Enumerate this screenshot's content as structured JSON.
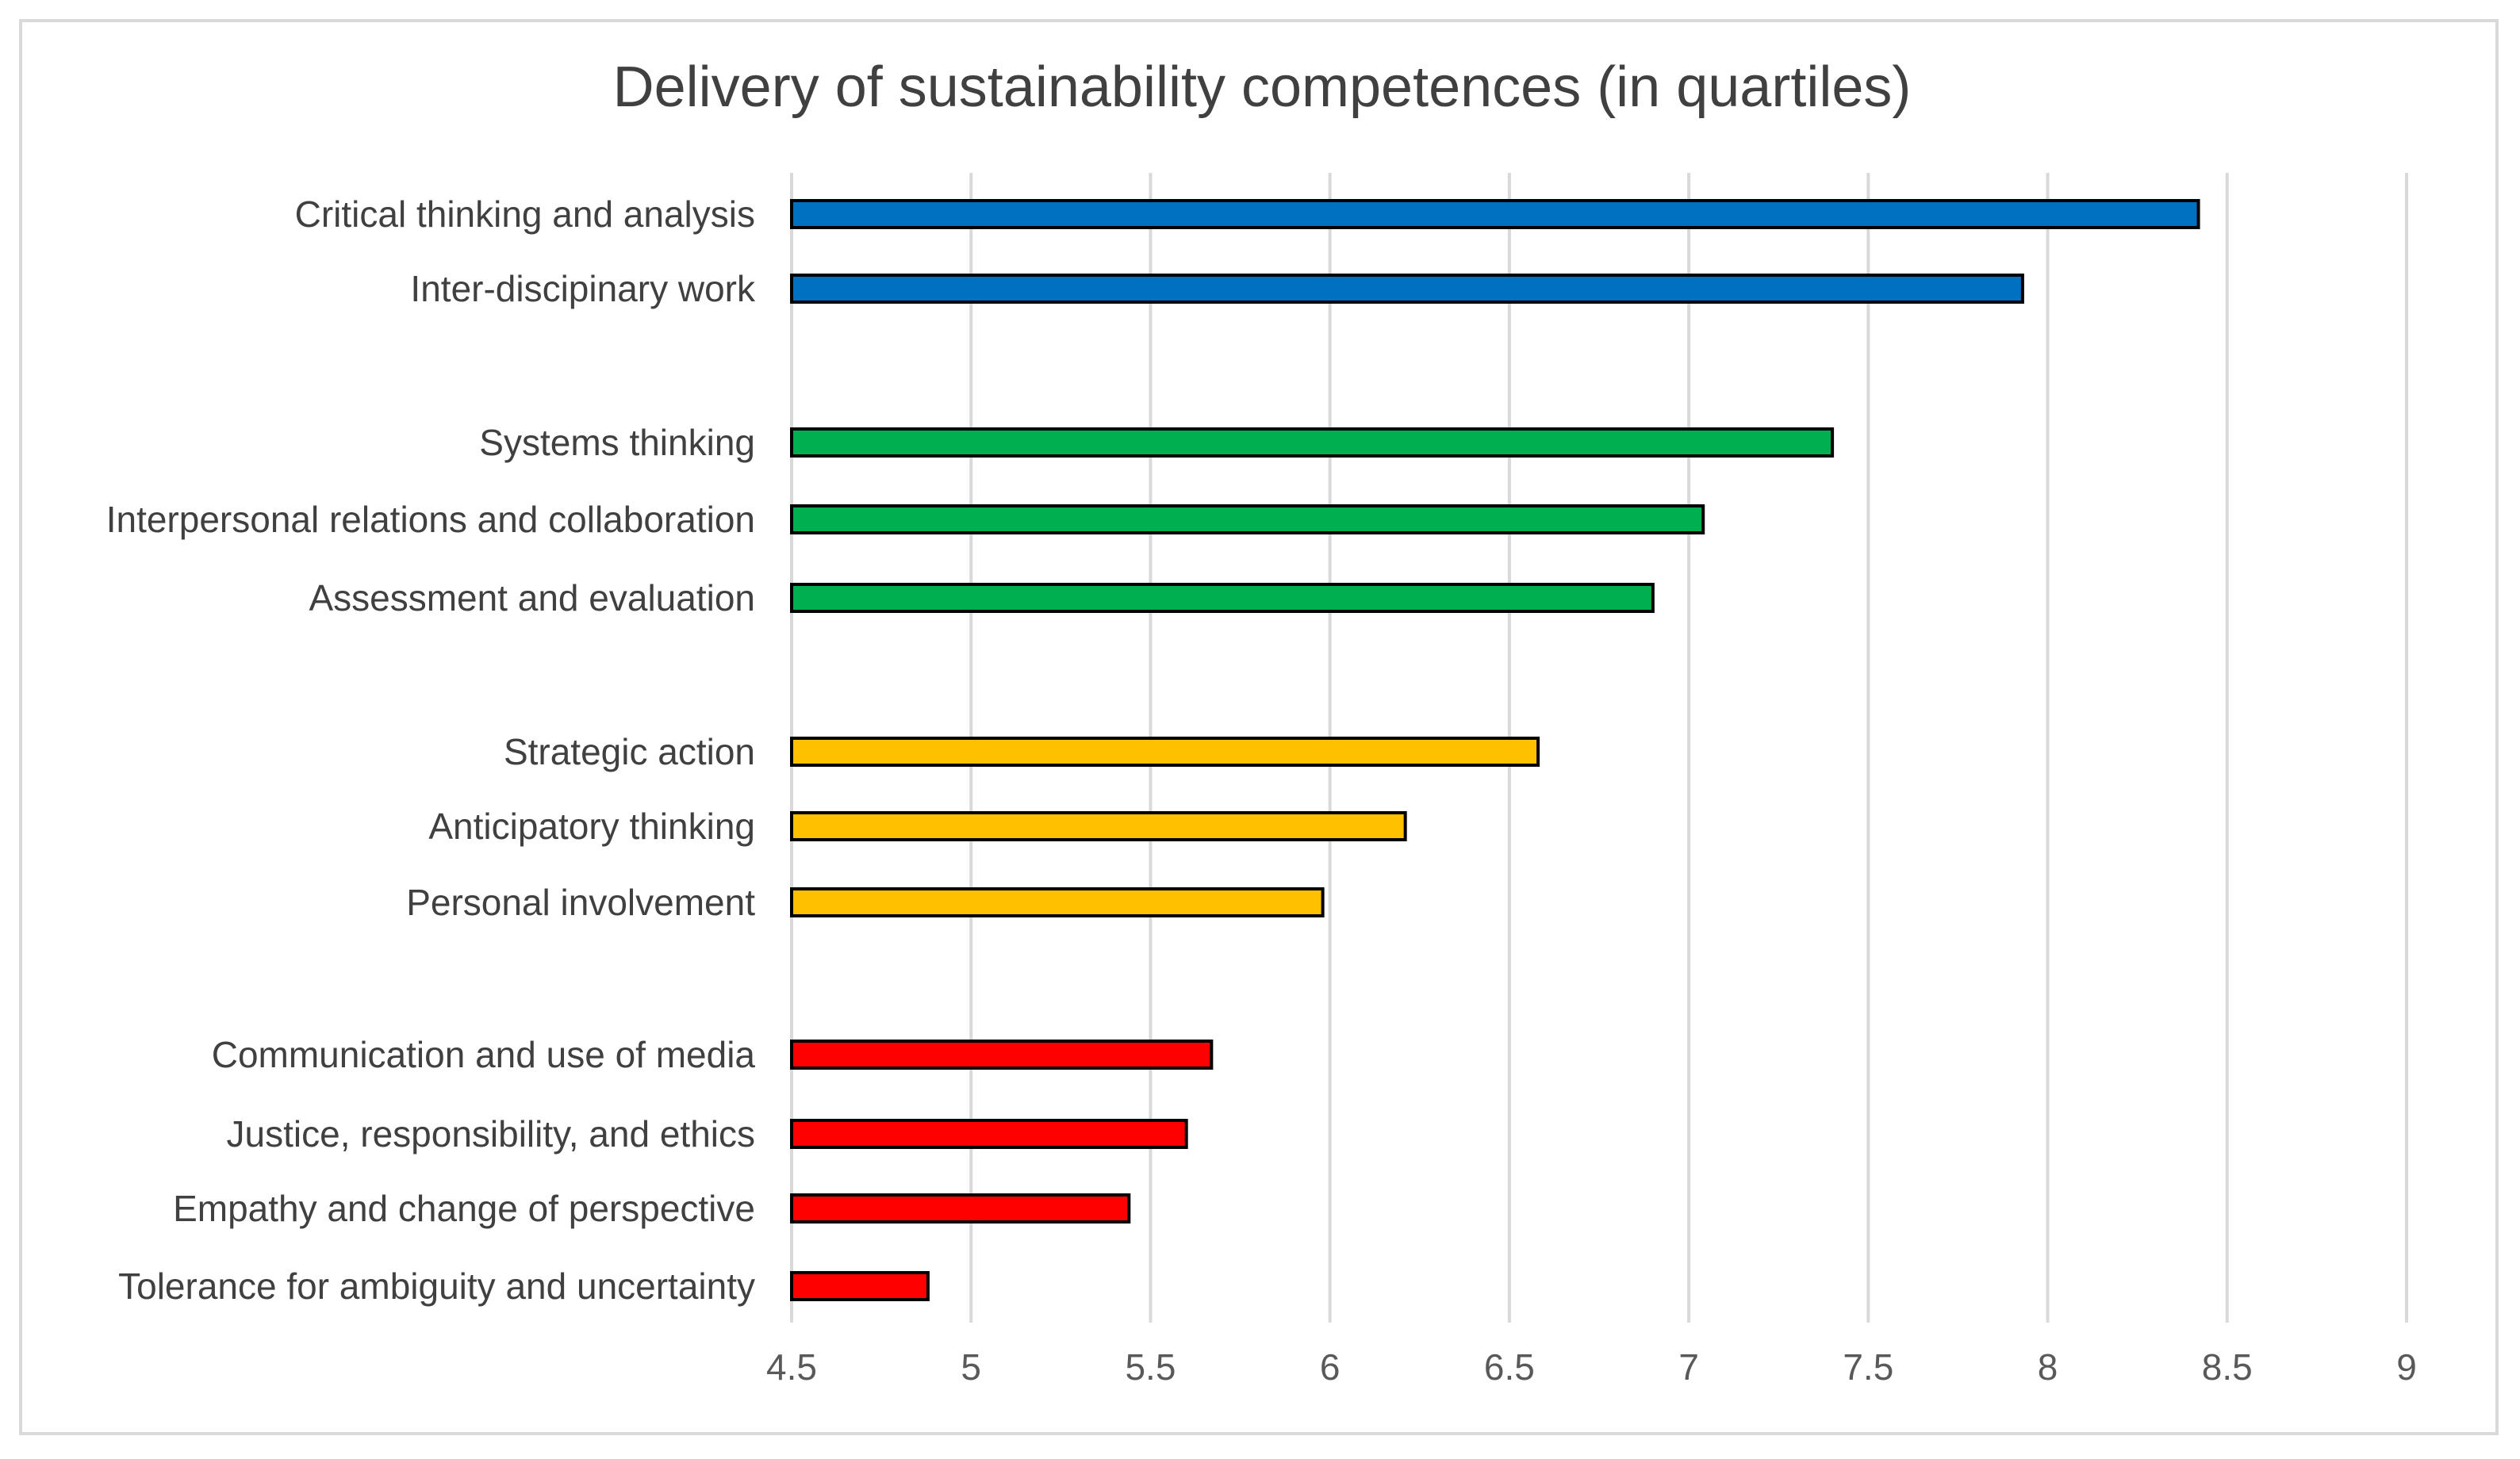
{
  "chart_data": {
    "type": "bar",
    "orientation": "horizontal",
    "title": "Delivery of sustainability competences (in quartiles)",
    "xlabel": "",
    "ylabel": "",
    "xlim": [
      4.5,
      9
    ],
    "xticks": [
      "4.5",
      "5",
      "5.5",
      "6",
      "6.5",
      "7",
      "7.5",
      "8",
      "8.5",
      "9"
    ],
    "grid": true,
    "legend": "none",
    "groups": [
      {
        "color": "#0070c0",
        "items": [
          {
            "label": "Critical thinking and analysis",
            "value": 8.42
          },
          {
            "label": "Inter-discipinary work",
            "value": 7.93
          }
        ]
      },
      {
        "color": "#00b050",
        "items": [
          {
            "label": "Systems thinking",
            "value": 7.4
          },
          {
            "label": "Interpersonal relations and collaboration",
            "value": 7.04
          },
          {
            "label": "Assessment and evaluation",
            "value": 6.9
          }
        ]
      },
      {
        "color": "#ffc000",
        "items": [
          {
            "label": "Strategic action",
            "value": 6.58
          },
          {
            "label": "Anticipatory thinking",
            "value": 6.21
          },
          {
            "label": "Personal involvement",
            "value": 5.98
          }
        ]
      },
      {
        "color": "#ff0000",
        "items": [
          {
            "label": "Communication and use of media",
            "value": 5.67
          },
          {
            "label": "Justice, responsibility, and ethics",
            "value": 5.6
          },
          {
            "label": "Empathy and change of perspective",
            "value": 5.44
          },
          {
            "label": "Tolerance for ambiguity and uncertainty",
            "value": 4.88
          }
        ]
      }
    ]
  }
}
